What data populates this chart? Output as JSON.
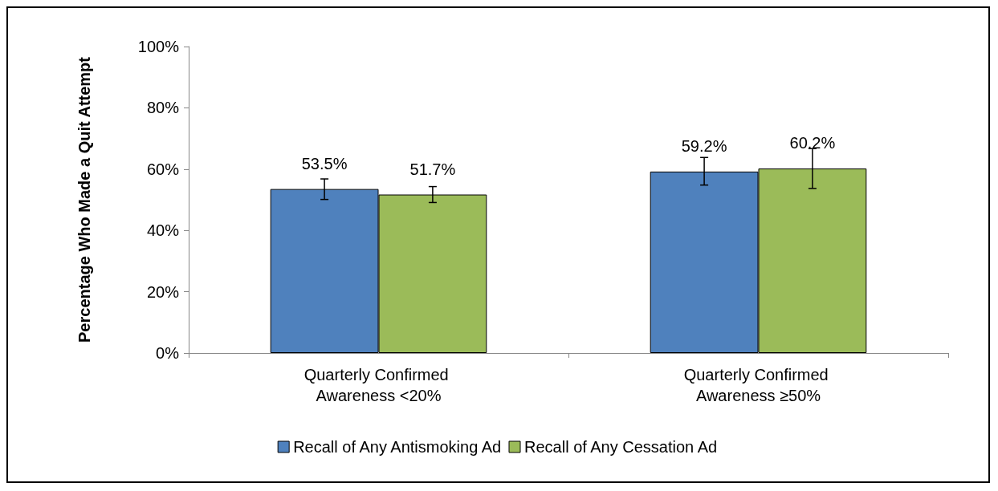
{
  "chart_data": {
    "type": "bar",
    "ylabel": "Percentage Who Made a Quit Attempt",
    "categories": [
      "Quarterly Confirmed Awareness <20%",
      "Quarterly Confirmed Awareness ≥50%"
    ],
    "series": [
      {
        "name": "Recall of Any Antismoking Ad",
        "color": "#4f81bd",
        "values": [
          53.5,
          59.2
        ],
        "errors": [
          [
            50.1,
            56.8
          ],
          [
            54.8,
            63.8
          ]
        ],
        "value_labels": [
          "53.5%",
          "59.2%"
        ]
      },
      {
        "name": "Recall of Any Cessation Ad",
        "color": "#9bbb59",
        "values": [
          51.7,
          60.2
        ],
        "errors": [
          [
            49.1,
            54.3
          ],
          [
            53.7,
            66.7
          ]
        ],
        "value_labels": [
          "51.7%",
          "60.2%"
        ]
      }
    ],
    "ylim": [
      0,
      100
    ],
    "yticks": [
      {
        "value": 0,
        "label": "0%"
      },
      {
        "value": 20,
        "label": "20%"
      },
      {
        "value": 40,
        "label": "40%"
      },
      {
        "value": 60,
        "label": "60%"
      },
      {
        "value": 80,
        "label": "80%"
      },
      {
        "value": 100,
        "label": "100%"
      }
    ],
    "grid": false,
    "legend": "bottom"
  }
}
